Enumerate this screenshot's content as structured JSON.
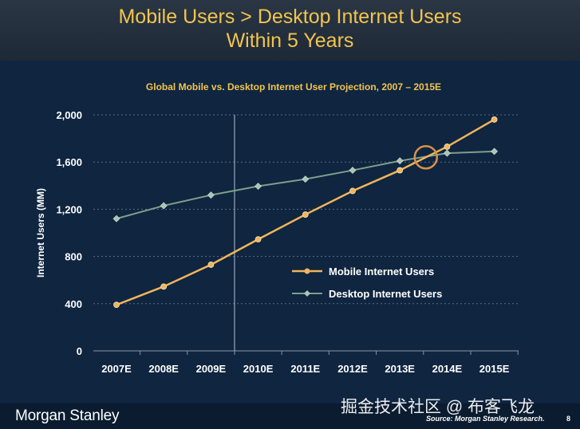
{
  "slide": {
    "title_line1": "Mobile Users > Desktop Internet Users",
    "title_line2": "Within 5 Years",
    "logo": "Morgan Stanley",
    "watermark": "掘金技术社区 @ 布客飞龙",
    "source": "Source: Morgan Stanley Research.",
    "page_number": "8"
  },
  "colors": {
    "mobile": "#f0b55a",
    "desktop": "#7d9f8c",
    "highlight": "#d9924a"
  },
  "chart_data": {
    "type": "line",
    "title": "Global Mobile vs. Desktop Internet User Projection, 2007 – 2015E",
    "xlabel": "",
    "ylabel": "Internet Users (MM)",
    "categories": [
      "2007E",
      "2008E",
      "2009E",
      "2010E",
      "2011E",
      "2012E",
      "2013E",
      "2014E",
      "2015E"
    ],
    "ylim": [
      0,
      2000
    ],
    "yticks": [
      "0",
      "400",
      "800",
      "1,200",
      "1,600",
      "2,000"
    ],
    "grid": "horizontal dashed",
    "legend_position": "center-right",
    "series": [
      {
        "name": "Mobile Internet Users",
        "values": [
          390,
          545,
          730,
          945,
          1155,
          1355,
          1530,
          1730,
          1960
        ]
      },
      {
        "name": "Desktop Internet Users",
        "values": [
          1120,
          1230,
          1320,
          1395,
          1455,
          1530,
          1610,
          1675,
          1690
        ]
      }
    ],
    "annotations": [
      "vertical divider between 2009E and 2010E",
      "circle at mobile/desktop crossover around 2014E"
    ]
  }
}
